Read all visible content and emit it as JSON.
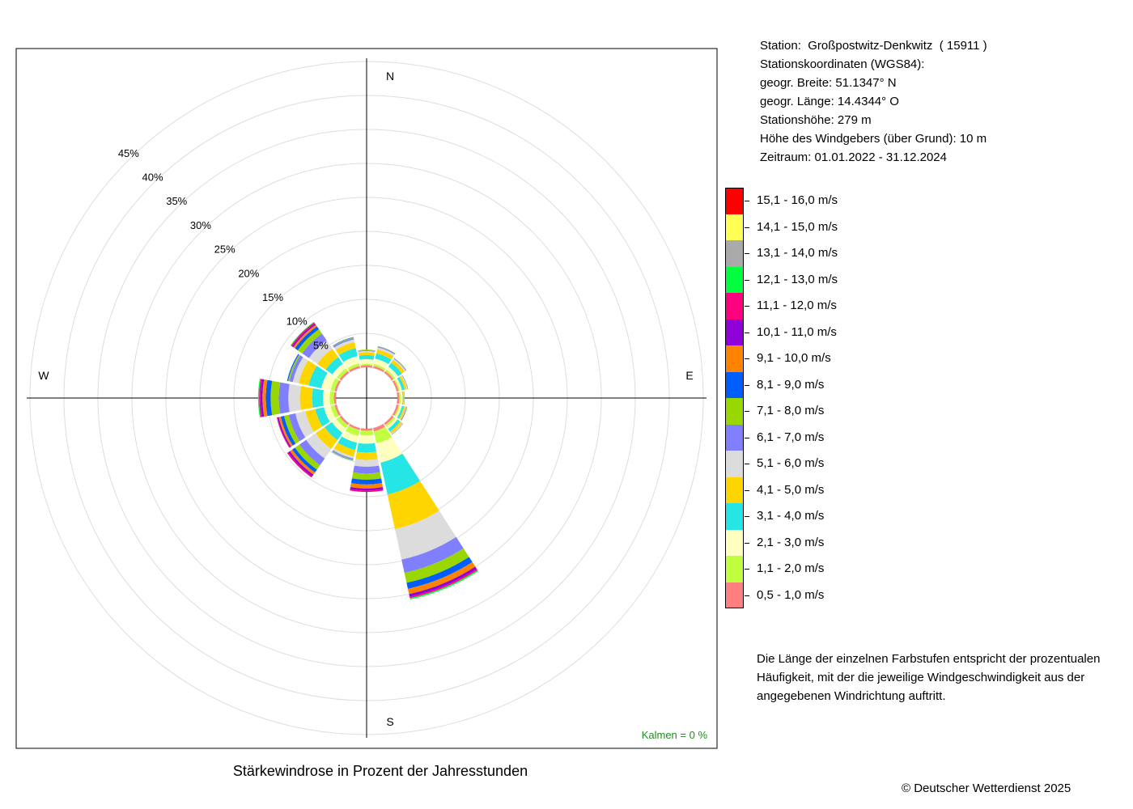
{
  "chart_data": {
    "type": "wind-rose",
    "title": "Stärkewindrose in Prozent der Jahresstunden",
    "directions": [
      "N",
      "NNE",
      "NE",
      "ENE",
      "E",
      "ESE",
      "SE",
      "SSE",
      "S",
      "SSW",
      "SW",
      "WSW",
      "W",
      "WNW",
      "NW",
      "NNW"
    ],
    "compass_labels": [
      "N",
      "E",
      "S",
      "W"
    ],
    "radial_ticks": [
      5,
      10,
      15,
      20,
      25,
      30,
      35,
      40,
      45
    ],
    "radial_tick_labels": [
      "5%",
      "10%",
      "15%",
      "20%",
      "25%",
      "30%",
      "35%",
      "40%",
      "45%"
    ],
    "rmax": 45,
    "speed_classes": [
      "0,5 - 1,0 m/s",
      "1,1 - 2,0 m/s",
      "2,1 - 3,0 m/s",
      "3,1 - 4,0 m/s",
      "4,1 - 5,0 m/s",
      "5,1 - 6,0 m/s",
      "6,1 - 7,0 m/s",
      "7,1 - 8,0 m/s",
      "8,1 - 9,0 m/s",
      "9,1 - 10,0 m/s",
      "10,1 - 11,0 m/s",
      "11,1 - 12,0 m/s",
      "12,1 - 13,0 m/s",
      "13,1 - 14,0 m/s",
      "14,1 - 15,0 m/s",
      "15,1 - 16,0 m/s"
    ],
    "colors": [
      "#FF7F7F",
      "#BFFF3F",
      "#FFFFBF",
      "#26E5E5",
      "#FFD500",
      "#DCDCDC",
      "#7F7FFF",
      "#99D700",
      "#005EFF",
      "#FF8200",
      "#9000D8",
      "#FF007F",
      "#00FF3F",
      "#AAAAAA",
      "#FFFF55",
      "#FF0000"
    ],
    "series_cumulative_percent": {
      "N": [
        0.3,
        0.5,
        1.2,
        1.8,
        2.2,
        2.4,
        2.5,
        2.6
      ],
      "NNE": [
        0.3,
        0.6,
        1.4,
        2.2,
        2.8,
        3.1,
        3.25,
        3.3
      ],
      "NE": [
        0.3,
        0.6,
        1.1,
        1.8,
        2.3,
        2.5,
        2.6,
        2.65
      ],
      "ENE": [
        0.3,
        0.5,
        0.8,
        1.2,
        1.5,
        1.65,
        1.7,
        1.75
      ],
      "E": [
        0.3,
        0.5,
        0.8,
        0.9,
        1.0,
        1.05,
        1.1
      ],
      "ESE": [
        0.3,
        0.5,
        0.8,
        1.1,
        1.35,
        1.45,
        1.55,
        1.6
      ],
      "SE": [
        0.3,
        0.6,
        1.0,
        1.5,
        1.8,
        1.95,
        2.0,
        2.05
      ],
      "SSE": [
        0.5,
        2.3,
        5.2,
        10.0,
        15.2,
        19.8,
        21.8,
        23.3,
        24.2,
        25.0,
        25.4,
        25.6,
        25.8
      ],
      "S": [
        0.3,
        1.0,
        2.2,
        3.5,
        4.6,
        5.6,
        6.6,
        7.5,
        8.2,
        8.8,
        9.1,
        9.3
      ],
      "SSW": [
        0.3,
        1.2,
        2.2,
        3.3,
        4.3,
        4.6,
        4.75,
        4.85,
        4.9
      ],
      "SW": [
        0.3,
        0.9,
        1.7,
        3.0,
        4.6,
        6.3,
        7.5,
        8.3,
        8.8,
        9.2,
        9.5,
        9.7
      ],
      "WSW": [
        0.3,
        0.9,
        1.9,
        3.2,
        4.7,
        6.2,
        7.2,
        7.9,
        8.4,
        8.7,
        8.9,
        9.0
      ],
      "W": [
        0.3,
        0.9,
        1.9,
        3.5,
        5.3,
        7.0,
        8.4,
        9.6,
        10.3,
        10.8,
        11.1,
        11.3,
        11.45
      ],
      "WNW": [
        0.3,
        0.9,
        2.3,
        4.2,
        5.7,
        6.6,
        7.1,
        7.3,
        7.45
      ],
      "NW": [
        0.3,
        0.8,
        1.6,
        2.8,
        4.3,
        5.8,
        7.0,
        7.8,
        8.3,
        8.6,
        8.8,
        9.0,
        9.1
      ],
      "NNW": [
        0.3,
        0.7,
        1.8,
        3.0,
        3.9,
        4.3,
        4.5,
        4.6,
        4.65
      ]
    },
    "calm": "Kalmen  =  0 %"
  },
  "station": {
    "line1": "Station:  Großpostwitz-Denkwitz  ( 15911 )",
    "line2": "Stationskoordinaten (WGS84):",
    "line3": "geogr. Breite: 51.1347° N",
    "line4": "geogr. Länge: 14.4344° O",
    "line5": "Stationshöhe: 279 m",
    "line6": "Höhe des Windgebers (über Grund): 10 m",
    "line7": "Zeitraum: 01.01.2022 - 31.12.2024"
  },
  "note": {
    "line1": "Die Länge der einzelnen Farbstufen entspricht der prozentualen",
    "line2": "Häufigkeit, mit der die jeweilige Windgeschwindigkeit aus der",
    "line3": "angegebenen Windrichtung auftritt."
  },
  "copyright": "© Deutscher Wetterdienst  2025"
}
